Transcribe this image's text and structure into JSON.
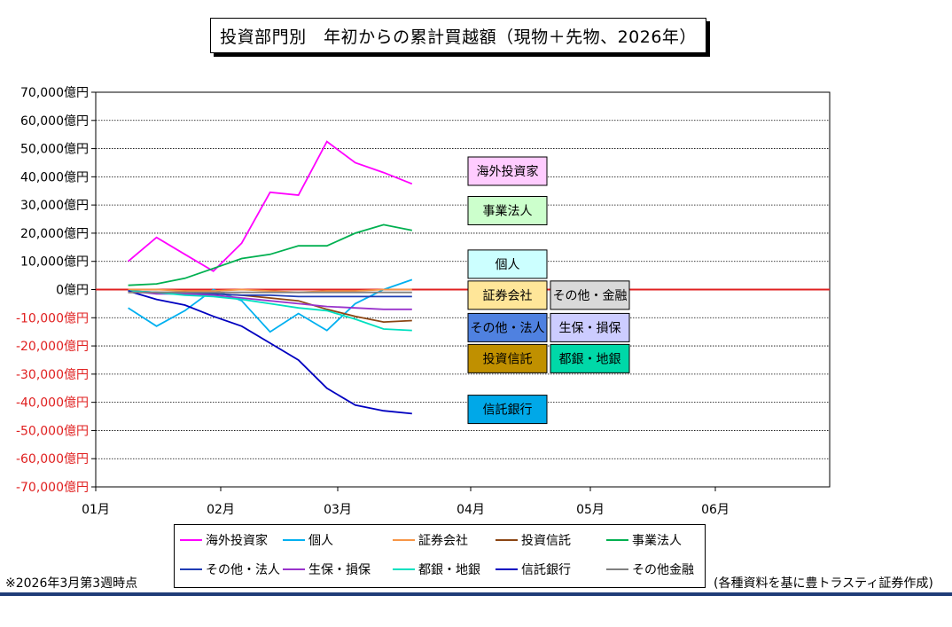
{
  "chart_data": {
    "type": "line",
    "title": "投資部門別　年初からの累計買越額（現物＋先物、2026年）",
    "x_ticks": [
      "01月",
      "02月",
      "03月",
      "04月",
      "05月",
      "06月"
    ],
    "y_ticks": [
      {
        "value": 70000,
        "label": "70,000億円"
      },
      {
        "value": 60000,
        "label": "60,000億円"
      },
      {
        "value": 50000,
        "label": "50,000億円"
      },
      {
        "value": 40000,
        "label": "40,000億円"
      },
      {
        "value": 30000,
        "label": "30,000億円"
      },
      {
        "value": 20000,
        "label": "20,000億円"
      },
      {
        "value": 10000,
        "label": "10,000億円"
      },
      {
        "value": 0,
        "label": "0億円"
      },
      {
        "value": -10000,
        "label": "-10,000億円"
      },
      {
        "value": -20000,
        "label": "-20,000億円"
      },
      {
        "value": -30000,
        "label": "-30,000億円"
      },
      {
        "value": -40000,
        "label": "-40,000億円"
      },
      {
        "value": -50000,
        "label": "-50,000億円"
      },
      {
        "value": -60000,
        "label": "-60,000億円"
      },
      {
        "value": -70000,
        "label": "-70,000億円"
      }
    ],
    "ylim": [
      -70000,
      70000
    ],
    "grid": true,
    "zero_line_color": "#e02020",
    "negative_label_color": "#e02020",
    "x_dates": [
      "2026-01-09",
      "2026-01-16",
      "2026-01-23",
      "2026-01-30",
      "2026-02-06",
      "2026-02-13",
      "2026-02-20",
      "2026-02-27",
      "2026-03-06",
      "2026-03-13",
      "2026-03-20"
    ],
    "series": [
      {
        "name": "海外投資家",
        "color": "#ff00ff",
        "values": [
          10000,
          18500,
          12500,
          6500,
          16500,
          34500,
          33500,
          52500,
          45000,
          41500,
          37500
        ]
      },
      {
        "name": "個人",
        "color": "#00b0f0",
        "values": [
          -6500,
          -13000,
          -7500,
          0,
          -4000,
          -15000,
          -8500,
          -14500,
          -5000,
          0,
          3500
        ]
      },
      {
        "name": "証券会社",
        "color": "#f79646",
        "values": [
          0,
          0,
          -500,
          -500,
          0,
          -500,
          -1000,
          -500,
          -500,
          0,
          0
        ]
      },
      {
        "name": "投資信託",
        "color": "#8b4513",
        "values": [
          -1000,
          -1000,
          -1000,
          -1500,
          -2000,
          -3000,
          -4000,
          -7000,
          -9500,
          -11500,
          -11000
        ]
      },
      {
        "name": "事業法人",
        "color": "#00b050",
        "values": [
          1500,
          2000,
          4000,
          7500,
          11000,
          12500,
          15500,
          15500,
          20000,
          23000,
          21000
        ]
      },
      {
        "name": "その他・法人",
        "color": "#1f3cb4",
        "values": [
          -500,
          -1000,
          -1500,
          -1500,
          -2000,
          -2000,
          -2500,
          -2500,
          -2500,
          -2500,
          -2500
        ]
      },
      {
        "name": "生保・損保",
        "color": "#9933cc",
        "values": [
          -500,
          -1500,
          -1500,
          -2000,
          -3000,
          -4000,
          -5000,
          -6000,
          -6500,
          -7000,
          -7000
        ]
      },
      {
        "name": "都銀・地銀",
        "color": "#00e0c0",
        "values": [
          -500,
          -1000,
          -2000,
          -2500,
          -3500,
          -5000,
          -6500,
          -7500,
          -10500,
          -14000,
          -14500
        ]
      },
      {
        "name": "信託銀行",
        "color": "#0000c0",
        "values": [
          -500,
          -3500,
          -5500,
          -9500,
          -13000,
          -19000,
          -25000,
          -35000,
          -41000,
          -43000,
          -44000
        ]
      },
      {
        "name": "その他金融",
        "color": "#808080",
        "values": [
          -1000,
          -1000,
          -1000,
          -1000,
          -1000,
          -1000,
          -1000,
          -1000,
          -1000,
          -1000,
          -1000
        ]
      }
    ],
    "callouts": [
      {
        "label": "海外投資家",
        "bg": "#ffccff",
        "value": 42000,
        "col": 0
      },
      {
        "label": "事業法人",
        "bg": "#ccffcc",
        "value": 28000,
        "col": 0
      },
      {
        "label": "個人",
        "bg": "#ccffff",
        "value": 9000,
        "col": 0
      },
      {
        "label": "証券会社",
        "bg": "#ffe699",
        "value": -2000,
        "col": 0
      },
      {
        "label": "その他・金融",
        "bg": "#d9d9d9",
        "value": -2000,
        "col": 1
      },
      {
        "label": "その他・法人",
        "bg": "#4f81e0",
        "value": -13500,
        "col": 0
      },
      {
        "label": "生保・損保",
        "bg": "#ccccff",
        "value": -13500,
        "col": 1
      },
      {
        "label": "投資信託",
        "bg": "#c09000",
        "value": -24500,
        "col": 0
      },
      {
        "label": "都銀・地銀",
        "bg": "#00d8a8",
        "value": -24500,
        "col": 1
      },
      {
        "label": "信託銀行",
        "bg": "#00a8e8",
        "value": -42500,
        "col": 0
      }
    ]
  },
  "notes": {
    "left": "※2026年3月第3週時点",
    "right": "(各種資料を基に豊トラスティ証券作成)"
  }
}
